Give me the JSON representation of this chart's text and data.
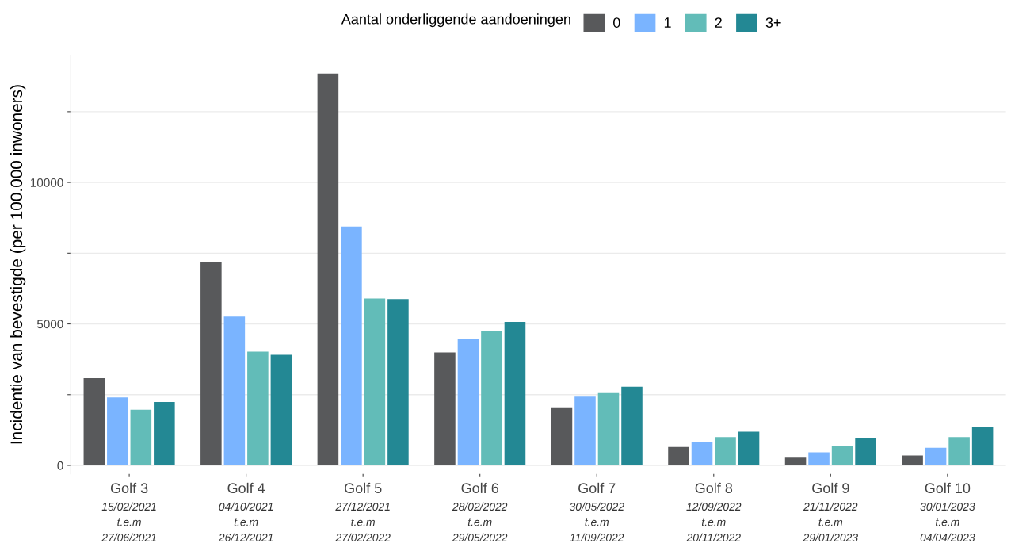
{
  "chart_data": {
    "type": "bar",
    "ylabel": "Incidentie van bevestigde (per 100.000 inwoners)",
    "legend_title": "Aantal onderliggende aandoeningen",
    "legend": "top",
    "categories": [
      "Golf 3\n15/02/2021\nt.e.m\n27/06/2021",
      "Golf 4\n04/10/2021\nt.e.m\n26/12/2021",
      "Golf 5\n27/12/2021\nt.e.m\n27/02/2022",
      "Golf 6\n28/02/2022\nt.e.m\n29/05/2022",
      "Golf 7\n30/05/2022\nt.e.m\n11/09/2022",
      "Golf 8\n12/09/2022\nt.e.m\n20/11/2022",
      "Golf 9\n21/11/2022\nt.e.m\n29/01/2023",
      "Golf 10\n30/01/2023\nt.e.m\n04/04/2023"
    ],
    "series": [
      {
        "name": "0",
        "color": "#58595b",
        "values": [
          3080,
          7200,
          13850,
          3990,
          2050,
          650,
          270,
          350
        ]
      },
      {
        "name": "1",
        "color": "#7ab4ff",
        "values": [
          2400,
          5260,
          8440,
          4470,
          2430,
          840,
          460,
          620
        ]
      },
      {
        "name": "2",
        "color": "#62bcb8",
        "values": [
          1970,
          4020,
          5900,
          4740,
          2560,
          1000,
          700,
          1000
        ]
      },
      {
        "name": "3+",
        "color": "#238894",
        "values": [
          2240,
          3910,
          5880,
          5070,
          2780,
          1190,
          970,
          1370
        ]
      }
    ],
    "ylim": [
      -300,
      14500
    ],
    "yticks": [
      0,
      {
        "value": 2500,
        "label": null
      },
      5000,
      {
        "value": 7500,
        "label": null
      },
      10000,
      {
        "value": 12500,
        "label": null
      }
    ],
    "grid": "y"
  }
}
